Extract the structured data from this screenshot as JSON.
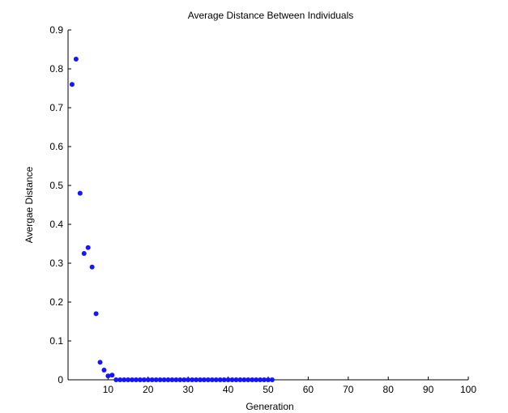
{
  "chart_data": {
    "type": "scatter",
    "title": "Average Distance Between Individuals",
    "xlabel": "Generation",
    "ylabel": "Avergae Distance",
    "xlim": [
      0,
      100
    ],
    "ylim": [
      0,
      0.9
    ],
    "xticks": [
      10,
      20,
      30,
      40,
      50,
      60,
      70,
      80,
      90,
      100
    ],
    "yticks": [
      0,
      0.1,
      0.2,
      0.3,
      0.4,
      0.5,
      0.6,
      0.7,
      0.8,
      0.9
    ],
    "grid": false,
    "legend": "none",
    "marker_color": "#1515ff",
    "series": [
      {
        "x": [
          1,
          2,
          3,
          4,
          5,
          6,
          7,
          8,
          9,
          10,
          11,
          12,
          13,
          14,
          15,
          16,
          17,
          18,
          19,
          20,
          21,
          22,
          23,
          24,
          25,
          26,
          27,
          28,
          29,
          30,
          31,
          32,
          33,
          34,
          35,
          36,
          37,
          38,
          39,
          40,
          41,
          42,
          43,
          44,
          45,
          46,
          47,
          48,
          49,
          50,
          51
        ],
        "y": [
          0.76,
          0.825,
          0.48,
          0.325,
          0.34,
          0.29,
          0.17,
          0.045,
          0.025,
          0.01,
          0.012,
          0,
          0,
          0,
          0,
          0,
          0,
          0,
          0,
          0,
          0,
          0,
          0,
          0,
          0,
          0,
          0,
          0,
          0,
          0,
          0,
          0,
          0,
          0,
          0,
          0,
          0,
          0,
          0,
          0,
          0,
          0,
          0,
          0,
          0,
          0,
          0,
          0,
          0,
          0,
          0
        ]
      }
    ]
  }
}
